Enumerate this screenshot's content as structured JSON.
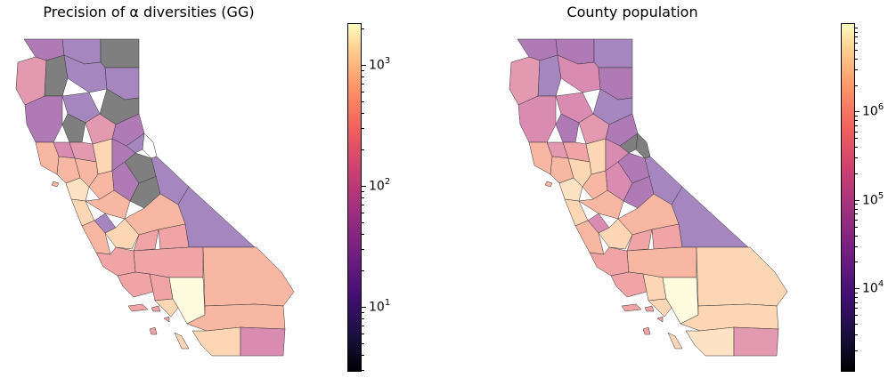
{
  "panels": [
    {
      "title": "Precision of α diversities (GG)",
      "colorbar": {
        "ticks": [
          {
            "base": "10",
            "exp": "1",
            "value": 10
          },
          {
            "base": "10",
            "exp": "2",
            "value": 100
          },
          {
            "base": "10",
            "exp": "3",
            "value": 1000
          }
        ],
        "range": [
          3,
          2200
        ]
      }
    },
    {
      "title": "County population",
      "colorbar": {
        "ticks": [
          {
            "base": "10",
            "exp": "4",
            "value": 10000
          },
          {
            "base": "10",
            "exp": "5",
            "value": 100000
          },
          {
            "base": "10",
            "exp": "6",
            "value": 1000000
          }
        ],
        "range": [
          1200,
          10000000
        ]
      }
    }
  ],
  "colors": {
    "no_data": "#7f7f7f",
    "colormap": "magma"
  }
}
